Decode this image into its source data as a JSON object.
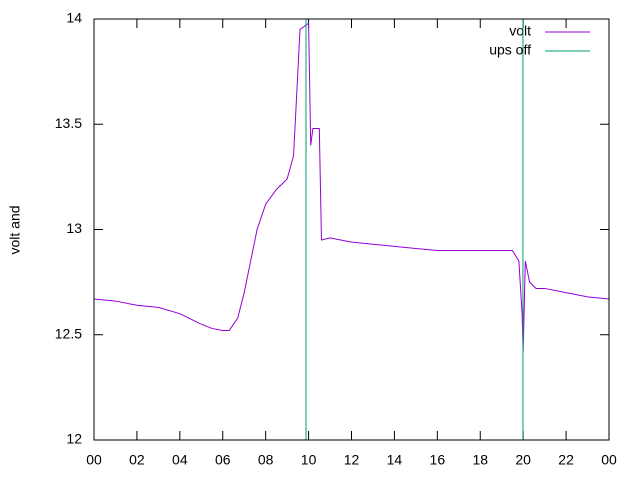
{
  "chart_data": {
    "type": "line",
    "ylabel": "volt and",
    "xlim": [
      0,
      24
    ],
    "ylim": [
      12,
      14
    ],
    "xticks": [
      {
        "value": 0,
        "label": "00"
      },
      {
        "value": 2,
        "label": "02"
      },
      {
        "value": 4,
        "label": "04"
      },
      {
        "value": 6,
        "label": "06"
      },
      {
        "value": 8,
        "label": "08"
      },
      {
        "value": 10,
        "label": "10"
      },
      12,
      14,
      16,
      18,
      20,
      22,
      {
        "value": 24,
        "label": "00"
      }
    ],
    "yticks": [
      12,
      12.5,
      13,
      13.5,
      14
    ],
    "legend": "top-right",
    "series": [
      {
        "name": "volt",
        "color": "#9400d3",
        "x": [
          0,
          1,
          2,
          3,
          4,
          5,
          5.5,
          6,
          6.3,
          6.7,
          7,
          7.3,
          7.6,
          8,
          8.5,
          9,
          9.3,
          9.5,
          9.6,
          10,
          10.1,
          10.2,
          10.5,
          10.6,
          11,
          12,
          13,
          14,
          15,
          16,
          17,
          18,
          19.5,
          19.8,
          19.95,
          20,
          20.1,
          20.3,
          20.6,
          21,
          22,
          23,
          24
        ],
        "values": [
          12.67,
          12.66,
          12.64,
          12.63,
          12.6,
          12.55,
          12.53,
          12.52,
          12.52,
          12.58,
          12.7,
          12.85,
          13.0,
          13.12,
          13.19,
          13.24,
          13.35,
          13.75,
          13.95,
          13.98,
          13.4,
          13.48,
          13.48,
          12.95,
          12.96,
          12.94,
          12.93,
          12.92,
          12.91,
          12.9,
          12.9,
          12.9,
          12.9,
          12.85,
          12.6,
          12.42,
          12.85,
          12.75,
          12.72,
          12.72,
          12.7,
          12.68,
          12.67
        ]
      },
      {
        "name": "ups off",
        "color": "#009e73",
        "x": [
          9.88,
          9.88,
          10.0,
          19.99,
          19.99
        ],
        "values": [
          12,
          14,
          null,
          14,
          12
        ]
      }
    ]
  }
}
